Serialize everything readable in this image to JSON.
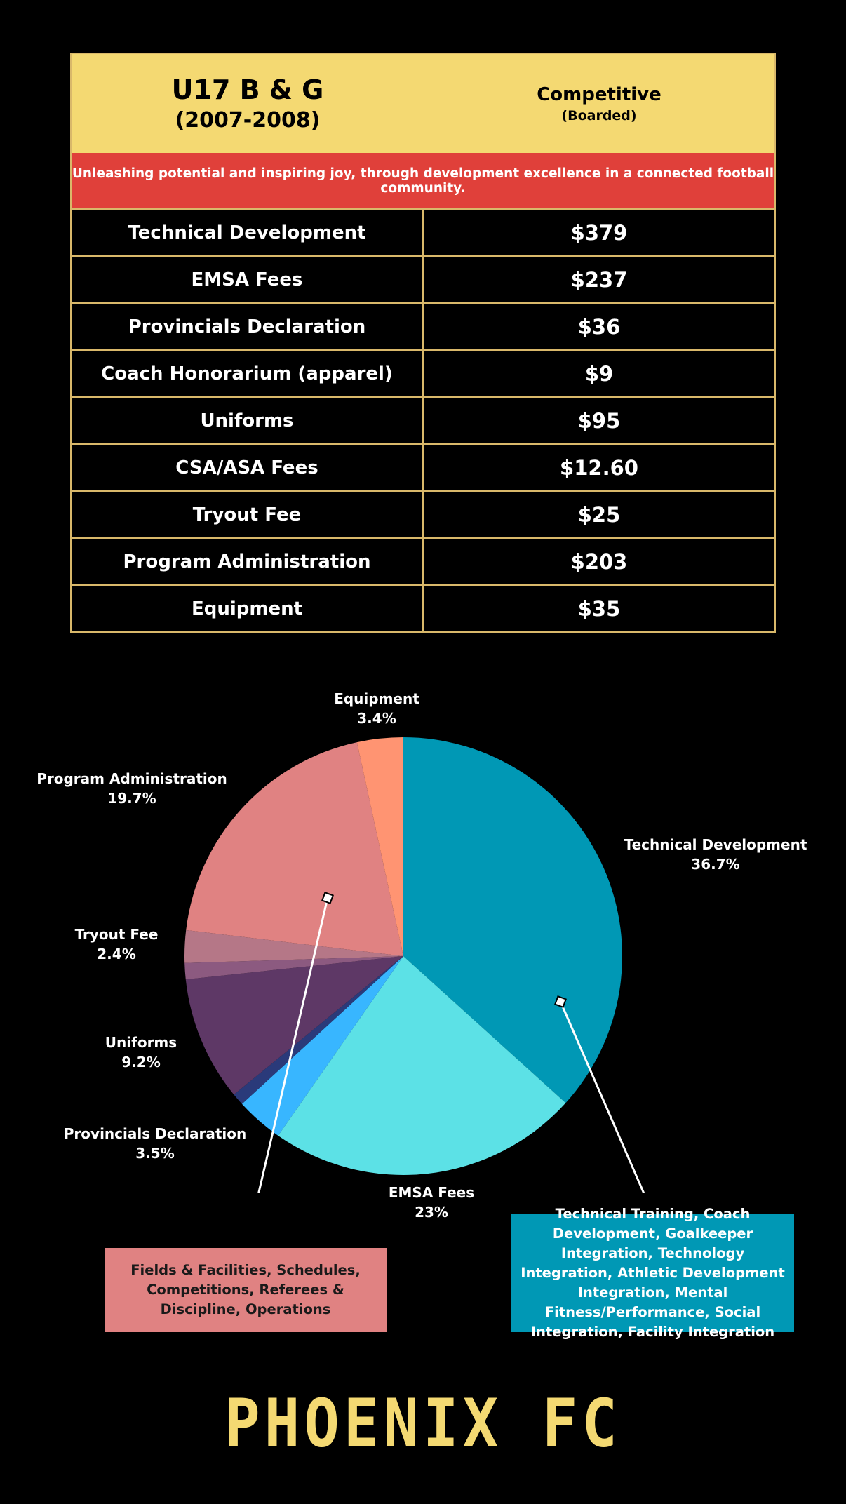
{
  "header": {
    "title": "U17 B & G",
    "years": "(2007-2008)",
    "program": "Competitive",
    "program_note": "(Boarded)"
  },
  "mission": "Unleashing potential and inspiring joy, through development excellence in a connected football community.",
  "fees": [
    {
      "item": "Technical Development",
      "amount": "$379"
    },
    {
      "item": "EMSA Fees",
      "amount": "$237"
    },
    {
      "item": "Provincials Declaration",
      "amount": "$36"
    },
    {
      "item": "Coach Honorarium (apparel)",
      "amount": "$9"
    },
    {
      "item": "Uniforms",
      "amount": "$95"
    },
    {
      "item": "CSA/ASA Fees",
      "amount": "$12.60"
    },
    {
      "item": "Tryout Fee",
      "amount": "$25"
    },
    {
      "item": "Program Administration",
      "amount": "$203"
    },
    {
      "item": "Equipment",
      "amount": "$35"
    }
  ],
  "chart_data": {
    "type": "pie",
    "slices": [
      {
        "label": "Technical Development",
        "value": 36.7,
        "pct_label": "36.7%",
        "color": "#0098b5"
      },
      {
        "label": "EMSA Fees",
        "value": 23.0,
        "pct_label": "23%",
        "color": "#5ce1e6"
      },
      {
        "label": "Provincials Declaration",
        "value": 3.5,
        "pct_label": "3.5%",
        "color": "#38b6ff"
      },
      {
        "label": "Coach Honorarium (apparel)",
        "value": 0.9,
        "pct_label": "",
        "color": "#2a3a7a"
      },
      {
        "label": "Uniforms",
        "value": 9.2,
        "pct_label": "9.2%",
        "color": "#5e3866"
      },
      {
        "label": "CSA/ASA Fees",
        "value": 1.2,
        "pct_label": "",
        "color": "#8c5a80"
      },
      {
        "label": "Tryout Fee",
        "value": 2.4,
        "pct_label": "2.4%",
        "color": "#b57787"
      },
      {
        "label": "Program Administration",
        "value": 19.7,
        "pct_label": "19.7%",
        "color": "#e08282"
      },
      {
        "label": "Equipment",
        "value": 3.4,
        "pct_label": "3.4%",
        "color": "#ff9472"
      }
    ]
  },
  "callouts": {
    "fields": "Fields & Facilities, Schedules, Competitions, Referees & Discipline, Operations",
    "tech": "Technical Training, Coach Development, Goalkeeper Integration, Technology Integration, Athletic Development Integration, Mental Fitness/Performance, Social Integration, Facility Integration"
  },
  "brand": "PHOENIX FC"
}
